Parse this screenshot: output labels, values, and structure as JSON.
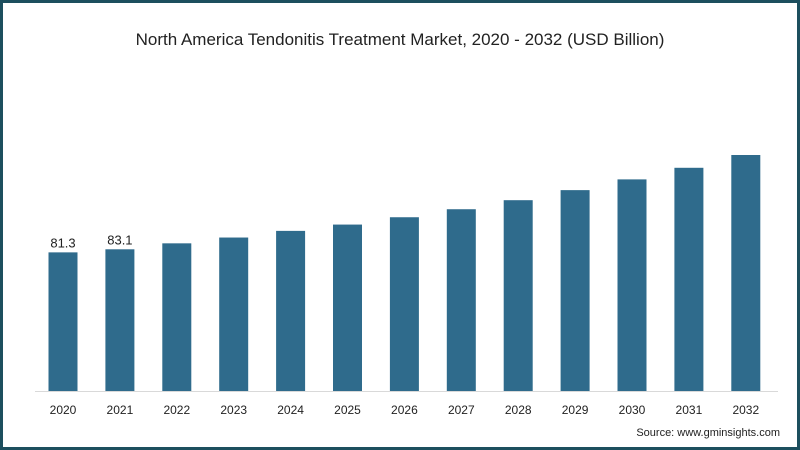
{
  "chart_data": {
    "type": "bar",
    "title": "North America Tendonitis Treatment Market, 2020 - 2032 (USD Billion)",
    "xlabel": "",
    "ylabel": "",
    "categories": [
      "2020",
      "2021",
      "2022",
      "2023",
      "2024",
      "2025",
      "2026",
      "2027",
      "2028",
      "2029",
      "2030",
      "2031",
      "2032"
    ],
    "values": [
      81.3,
      83.1,
      86.6,
      90.0,
      93.9,
      97.6,
      101.9,
      106.6,
      111.9,
      117.8,
      124.1,
      130.9,
      138.4
    ],
    "data_labels": {
      "0": "81.3",
      "1": "83.1"
    },
    "ylim": [
      0,
      140
    ],
    "grid": false,
    "bar_color": "#2f6b8c",
    "source": "Source: www.gminsights.com"
  }
}
